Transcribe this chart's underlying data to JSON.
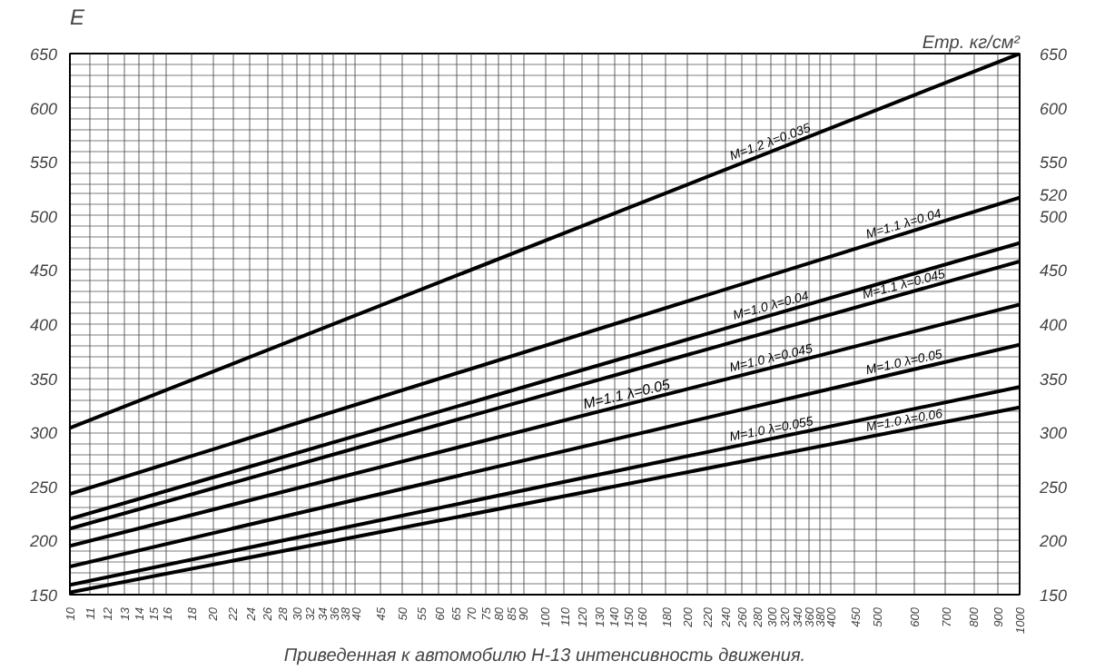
{
  "chart_data": {
    "type": "line",
    "xlabel": "Приведенная к автомобилю Н-13 интенсивность движения.",
    "ylabel": "E",
    "y2label": "Eтр. кг/см²",
    "log": "x",
    "marker": "none",
    "line_style": "solid",
    "grid": true,
    "xlim": [
      10,
      1000
    ],
    "xticks": [
      10,
      11,
      12,
      13,
      14,
      15,
      16,
      18,
      20,
      22,
      24,
      26,
      28,
      30,
      32,
      34,
      36,
      38,
      40,
      45,
      50,
      55,
      60,
      65,
      70,
      75,
      80,
      85,
      90,
      100,
      110,
      120,
      130,
      140,
      150,
      160,
      180,
      200,
      220,
      240,
      260,
      280,
      300,
      320,
      340,
      360,
      380,
      400,
      450,
      500,
      600,
      700,
      800,
      900,
      1000
    ],
    "ylim": [
      150,
      650
    ],
    "yticks": [
      150,
      {
        "value": 160,
        "label": null
      },
      {
        "value": 170,
        "label": null
      },
      {
        "value": 180,
        "label": null
      },
      {
        "value": 190,
        "label": null
      },
      200,
      {
        "value": 210,
        "label": null
      },
      {
        "value": 220,
        "label": null
      },
      {
        "value": 230,
        "label": null
      },
      {
        "value": 240,
        "label": null
      },
      250,
      {
        "value": 260,
        "label": null
      },
      {
        "value": 270,
        "label": null
      },
      {
        "value": 280,
        "label": null
      },
      {
        "value": 290,
        "label": null
      },
      300,
      {
        "value": 310,
        "label": null
      },
      {
        "value": 320,
        "label": null
      },
      {
        "value": 330,
        "label": null
      },
      {
        "value": 340,
        "label": null
      },
      350,
      {
        "value": 360,
        "label": null
      },
      {
        "value": 370,
        "label": null
      },
      {
        "value": 380,
        "label": null
      },
      {
        "value": 390,
        "label": null
      },
      400,
      {
        "value": 410,
        "label": null
      },
      {
        "value": 420,
        "label": null
      },
      {
        "value": 430,
        "label": null
      },
      {
        "value": 440,
        "label": null
      },
      450,
      {
        "value": 460,
        "label": null
      },
      {
        "value": 470,
        "label": null
      },
      {
        "value": 480,
        "label": null
      },
      {
        "value": 490,
        "label": null
      },
      500,
      {
        "value": 510,
        "label": null
      },
      {
        "value": 520,
        "label": null
      },
      {
        "value": 530,
        "label": null
      },
      {
        "value": 540,
        "label": null
      },
      550,
      {
        "value": 560,
        "label": null
      },
      {
        "value": 570,
        "label": null
      },
      {
        "value": 580,
        "label": null
      },
      {
        "value": 590,
        "label": null
      },
      600,
      {
        "value": 610,
        "label": null
      },
      {
        "value": 620,
        "label": null
      },
      {
        "value": 630,
        "label": null
      },
      {
        "value": 640,
        "label": null
      },
      650
    ],
    "y2lim": [
      150,
      650
    ],
    "y2ticks": [
      150,
      200,
      250,
      300,
      350,
      400,
      450,
      500,
      520,
      550,
      600,
      650
    ],
    "x": [
      10,
      1000
    ],
    "series": [
      {
        "name": "M=1.2 λ=0.035",
        "color": "#000000",
        "values": [
          304,
          650
        ]
      },
      {
        "name": "M=1.1 λ=0.04",
        "color": "#000000",
        "values": [
          243,
          517
        ]
      },
      {
        "name": "M=1.0 λ=0.04",
        "color": "#000000",
        "values": [
          220,
          475
        ]
      },
      {
        "name": "M=1.1 λ=0.045",
        "color": "#000000",
        "values": [
          211,
          458
        ]
      },
      {
        "name": "M=1.0 λ=0.045",
        "color": "#000000",
        "values": [
          195,
          418
        ]
      },
      {
        "name": "M=1.0 λ=0.05",
        "color": "#000000",
        "values": [
          176,
          381
        ]
      },
      {
        "name": "M=1.0 λ=0.055",
        "color": "#000000",
        "values": [
          159,
          342
        ]
      },
      {
        "name": "M=1.0 λ=0.06",
        "color": "#000000",
        "values": [
          152,
          323
        ]
      }
    ],
    "annotations": [
      {
        "text": "M=1.1 λ=0.05",
        "x": 150,
        "y": 326
      }
    ]
  }
}
